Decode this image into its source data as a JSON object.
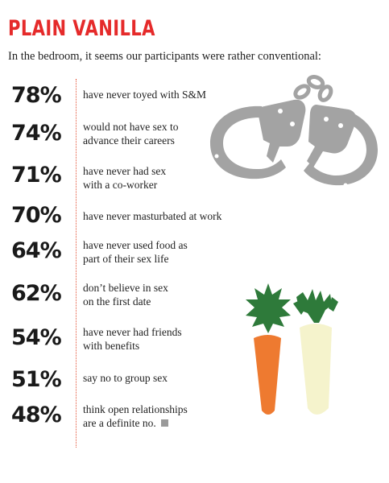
{
  "header": {
    "title": "PLAIN VANILLA",
    "subtitle": "In the bedroom, it seems our participants were rather conventional:"
  },
  "stats": [
    {
      "percent": "78%",
      "line1": "have never toyed with S&M",
      "line2": ""
    },
    {
      "percent": "74%",
      "line1": "would not have sex to",
      "line2": "advance their careers"
    },
    {
      "percent": "71%",
      "line1": "have never had sex",
      "line2": "with a co-worker"
    },
    {
      "percent": "70%",
      "line1": "have never masturbated at work",
      "line2": ""
    },
    {
      "percent": "64%",
      "line1": "have never used food as",
      "line2": "part of their sex life"
    },
    {
      "percent": "62%",
      "line1": "don’t believe in sex",
      "line2": "on the first date"
    },
    {
      "percent": "54%",
      "line1": "have never had friends",
      "line2": "with benefits"
    },
    {
      "percent": "51%",
      "line1": "say no to group sex",
      "line2": ""
    },
    {
      "percent": "48%",
      "line1": "think open relationships",
      "line2": "are a definite no."
    }
  ],
  "illustrations": {
    "handcuffs": "handcuffs-illustration",
    "carrot": "carrot-illustration",
    "radish": "daikon-radish-illustration"
  },
  "colors": {
    "title": "#e52a2a",
    "divider": "#e5553a",
    "handcuffs": "#a3a3a3",
    "carrot": "#ee7a30",
    "greens": "#2e7a3a",
    "radish": "#f5f3cc"
  }
}
